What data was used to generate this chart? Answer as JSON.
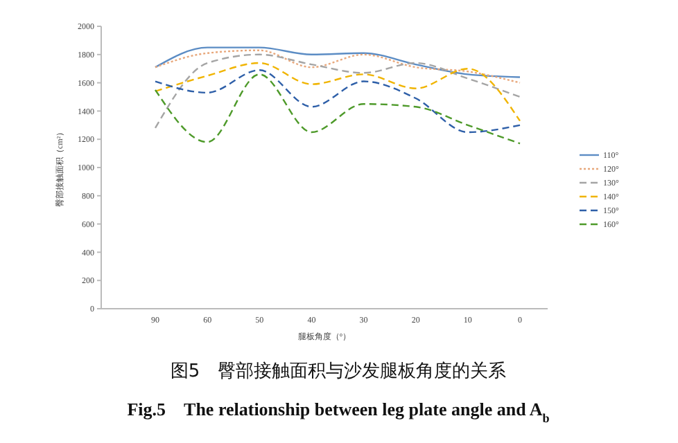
{
  "chart_data": {
    "type": "line",
    "title": "图5　臀部接触面积与沙发腿板角度的关系",
    "subtitle": "Fig.5　The relationship between leg plate angle and A$_{b}$",
    "xlabel": "腿板角度（°）",
    "ylabel": "臀部接触面积（cm²）",
    "categories": [
      "90",
      "60",
      "50",
      "40",
      "30",
      "20",
      "10",
      "0"
    ],
    "ylim": [
      0,
      2000
    ],
    "yticks": [
      0,
      200,
      400,
      600,
      800,
      1000,
      1200,
      1400,
      1600,
      1800,
      2000
    ],
    "grid": false,
    "legend": "right",
    "series": [
      {
        "name": "110°",
        "color": "#5b8cc4",
        "line_style": "solid",
        "values": [
          1710,
          1850,
          1850,
          1800,
          1810,
          1730,
          1660,
          1640
        ]
      },
      {
        "name": "120°",
        "color": "#e8a87c",
        "line_style": "dotted",
        "values": [
          1710,
          1810,
          1830,
          1710,
          1800,
          1710,
          1680,
          1600
        ]
      },
      {
        "name": "130°",
        "color": "#a5a5a5",
        "line_style": "dashed",
        "values": [
          1280,
          1740,
          1800,
          1730,
          1670,
          1740,
          1630,
          1500
        ]
      },
      {
        "name": "140°",
        "color": "#f0b400",
        "line_style": "dashed",
        "values": [
          1540,
          1650,
          1740,
          1590,
          1660,
          1560,
          1700,
          1330
        ]
      },
      {
        "name": "150°",
        "color": "#2e5fa8",
        "line_style": "dashed",
        "values": [
          1610,
          1530,
          1690,
          1430,
          1610,
          1490,
          1250,
          1300
        ]
      },
      {
        "name": "160°",
        "color": "#4e9a2a",
        "line_style": "dashed",
        "values": [
          1550,
          1180,
          1660,
          1250,
          1450,
          1430,
          1300,
          1170
        ]
      }
    ]
  }
}
